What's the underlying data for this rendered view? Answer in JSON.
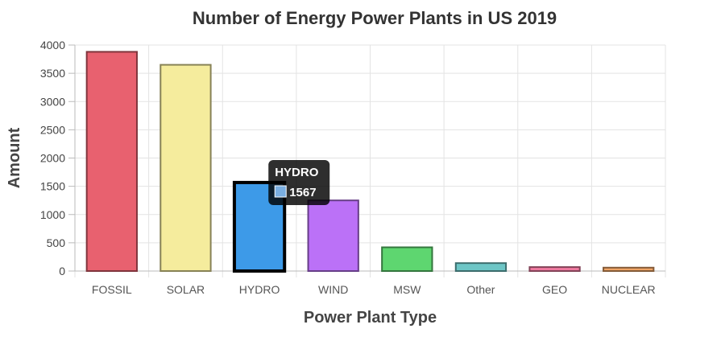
{
  "chart_data": {
    "type": "bar",
    "title": "Number of Energy Power Plants in US 2019",
    "xlabel": "Power Plant Type",
    "ylabel": "Amount",
    "categories": [
      "FOSSIL",
      "SOLAR",
      "HYDRO",
      "WIND",
      "MSW",
      "Other",
      "GEO",
      "NUCLEAR"
    ],
    "values": [
      3880,
      3650,
      1567,
      1250,
      420,
      140,
      70,
      60
    ],
    "colors": [
      "#e8616f",
      "#f5ec9d",
      "#3d9ae8",
      "#bb71f7",
      "#5ed670",
      "#6dc6c6",
      "#ef7aa0",
      "#f0a566"
    ],
    "ylim": [
      0,
      4000
    ],
    "yticks": [
      0,
      500,
      1000,
      1500,
      2000,
      2500,
      3000,
      3500,
      4000
    ],
    "grid": true,
    "highlighted_index": 2,
    "tooltip": {
      "title": "HYDRO",
      "value": "1567",
      "swatch_color": "#7aaee0"
    }
  }
}
